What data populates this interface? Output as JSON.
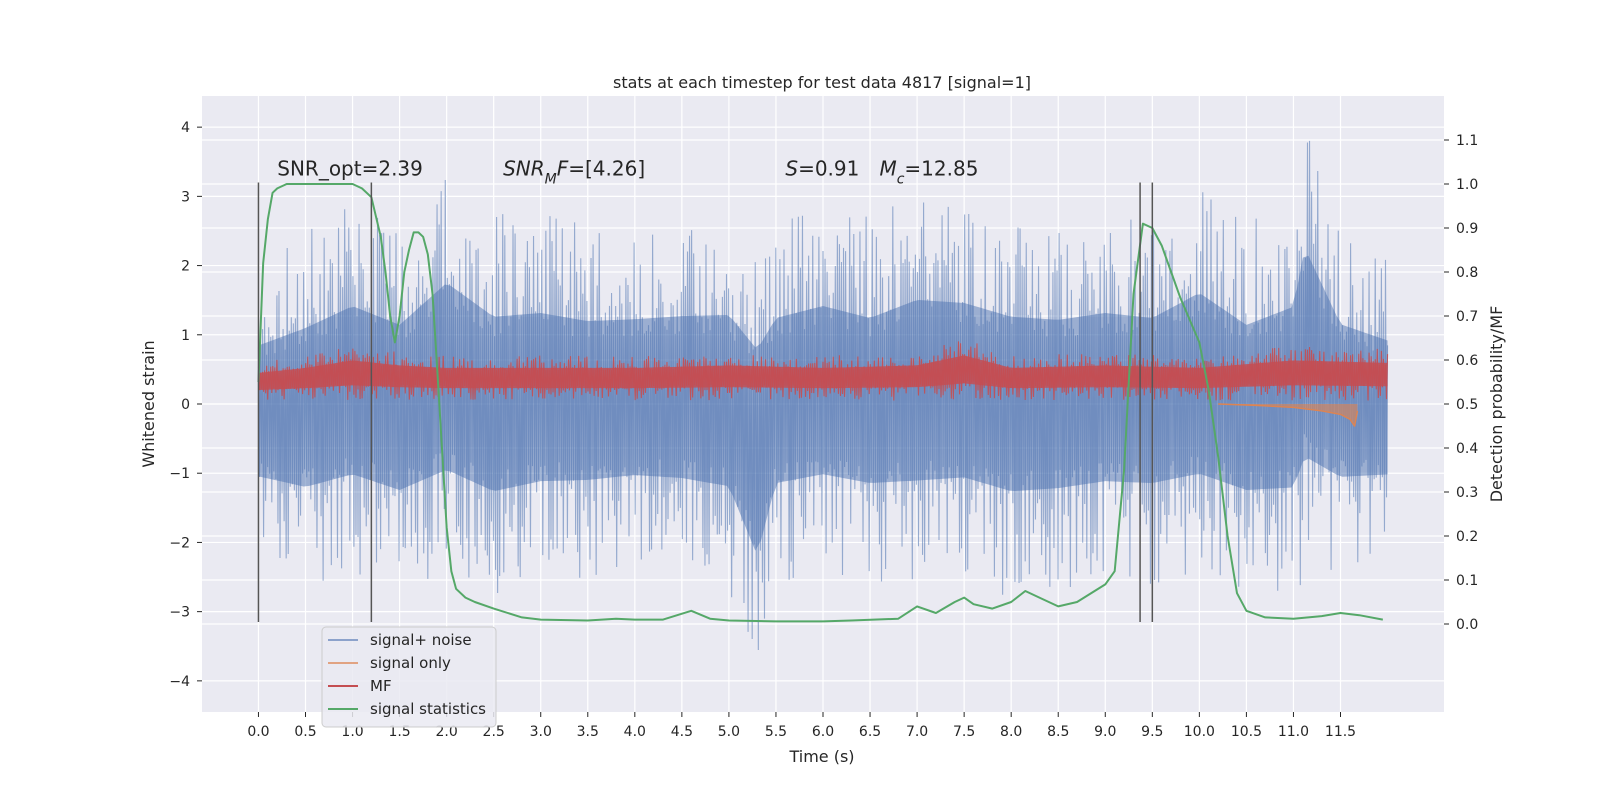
{
  "chart_data": {
    "type": "line",
    "title": "stats at each timestep for test data 4817 [signal=1]",
    "xlabel": "Time (s)",
    "ylabel": "Whitened strain",
    "ylabel_right": "Detection probability/MF",
    "xlim": [
      -0.6,
      12.6
    ],
    "ylim_left": [
      -4.45,
      4.45
    ],
    "ylim_right": [
      -0.2,
      1.2
    ],
    "x_ticks": [
      0.0,
      0.5,
      1.0,
      1.5,
      2.0,
      2.5,
      3.0,
      3.5,
      4.0,
      4.5,
      5.0,
      5.5,
      6.0,
      6.5,
      7.0,
      7.5,
      8.0,
      8.5,
      9.0,
      9.5,
      10.0,
      10.5,
      11.0,
      11.5
    ],
    "x_tick_labels": [
      "0.0",
      "0.5",
      "1.0",
      "1.5",
      "2.0",
      "2.5",
      "3.0",
      "3.5",
      "4.0",
      "4.5",
      "5.0",
      "5.5",
      "6.0",
      "6.5",
      "7.0",
      "7.5",
      "8.0",
      "8.5",
      "9.0",
      "9.5",
      "10.0",
      "10.5",
      "11.0",
      "11.5"
    ],
    "y_left_ticks": [
      -4,
      -3,
      -2,
      -1,
      0,
      1,
      2,
      3,
      4
    ],
    "y_left_tick_labels": [
      "−4",
      "−3",
      "−2",
      "−1",
      "0",
      "1",
      "2",
      "3",
      "4"
    ],
    "y_right_ticks": [
      0.0,
      0.1,
      0.2,
      0.3,
      0.4,
      0.5,
      0.6,
      0.7,
      0.8,
      0.9,
      1.0,
      1.1
    ],
    "y_right_tick_labels": [
      "0.0",
      "0.1",
      "0.2",
      "0.3",
      "0.4",
      "0.5",
      "0.6",
      "0.7",
      "0.8",
      "0.9",
      "1.0",
      "1.1"
    ],
    "grid": true,
    "legend_position": "lower-left",
    "series": [
      {
        "name": "signal+ noise",
        "axis": "left",
        "color": "#4c72b0",
        "style": "noise",
        "x_range": [
          0.0,
          12.0
        ],
        "envelope": [
          [
            0.0,
            -2.2,
            2.0
          ],
          [
            0.5,
            -2.6,
            2.5
          ],
          [
            1.0,
            -2.5,
            2.9
          ],
          [
            1.5,
            -2.7,
            2.6
          ],
          [
            2.0,
            -2.6,
            3.4
          ],
          [
            2.5,
            -2.8,
            2.8
          ],
          [
            3.0,
            -2.6,
            2.8
          ],
          [
            3.5,
            -2.5,
            2.6
          ],
          [
            4.0,
            -2.4,
            2.6
          ],
          [
            4.5,
            -2.5,
            2.7
          ],
          [
            5.0,
            -2.7,
            2.8
          ],
          [
            5.3,
            -4.0,
            2.6
          ],
          [
            5.5,
            -2.6,
            2.7
          ],
          [
            6.0,
            -2.5,
            2.9
          ],
          [
            6.5,
            -2.6,
            2.7
          ],
          [
            7.0,
            -2.7,
            3.1
          ],
          [
            7.5,
            -2.6,
            3.0
          ],
          [
            8.0,
            -2.8,
            2.8
          ],
          [
            8.5,
            -2.7,
            2.7
          ],
          [
            9.0,
            -2.6,
            2.8
          ],
          [
            9.5,
            -2.6,
            2.7
          ],
          [
            10.0,
            -2.6,
            3.2
          ],
          [
            10.5,
            -2.7,
            2.6
          ],
          [
            11.0,
            -2.8,
            3.0
          ],
          [
            11.12,
            -2.6,
            4.1
          ],
          [
            11.5,
            -2.4,
            2.5
          ],
          [
            12.0,
            -2.2,
            2.1
          ]
        ]
      },
      {
        "name": "signal only",
        "axis": "left",
        "color": "#dd8452",
        "style": "line",
        "x": [
          10.2,
          10.6,
          11.0,
          11.3,
          11.5,
          11.6,
          11.65,
          11.68
        ],
        "y": [
          0.0,
          -0.02,
          -0.05,
          -0.1,
          -0.15,
          -0.22,
          -0.32,
          -0.1
        ]
      },
      {
        "name": "MF",
        "axis": "left",
        "color": "#c44e52",
        "style": "noise",
        "x_range": [
          0.0,
          12.0
        ],
        "envelope": [
          [
            0.0,
            0.05,
            0.6
          ],
          [
            0.5,
            0.05,
            0.7
          ],
          [
            1.0,
            0.05,
            0.85
          ],
          [
            1.5,
            0.05,
            0.75
          ],
          [
            2.0,
            0.05,
            0.7
          ],
          [
            3.0,
            0.05,
            0.7
          ],
          [
            4.0,
            0.05,
            0.7
          ],
          [
            5.0,
            0.05,
            0.75
          ],
          [
            6.0,
            0.05,
            0.7
          ],
          [
            7.0,
            0.05,
            0.75
          ],
          [
            7.5,
            0.05,
            0.95
          ],
          [
            8.0,
            0.05,
            0.7
          ],
          [
            9.0,
            0.05,
            0.75
          ],
          [
            10.0,
            0.05,
            0.7
          ],
          [
            11.0,
            0.05,
            0.85
          ],
          [
            12.0,
            0.05,
            0.8
          ]
        ]
      },
      {
        "name": "signal statistics",
        "axis": "right",
        "color": "#55a868",
        "style": "line",
        "x": [
          0.0,
          0.05,
          0.1,
          0.15,
          0.2,
          0.3,
          0.5,
          0.8,
          1.0,
          1.1,
          1.2,
          1.3,
          1.35,
          1.4,
          1.45,
          1.5,
          1.55,
          1.6,
          1.65,
          1.7,
          1.75,
          1.8,
          1.85,
          1.9,
          1.95,
          2.0,
          2.05,
          2.1,
          2.2,
          2.3,
          2.5,
          2.8,
          3.0,
          3.5,
          3.8,
          4.0,
          4.3,
          4.6,
          4.8,
          5.0,
          5.5,
          6.0,
          6.3,
          6.8,
          7.0,
          7.2,
          7.4,
          7.5,
          7.6,
          7.8,
          8.0,
          8.15,
          8.3,
          8.5,
          8.7,
          9.0,
          9.1,
          9.2,
          9.3,
          9.4,
          9.5,
          9.6,
          9.7,
          9.8,
          10.0,
          10.1,
          10.2,
          10.3,
          10.4,
          10.5,
          10.7,
          11.0,
          11.3,
          11.5,
          11.7,
          11.95
        ],
        "y": [
          0.55,
          0.82,
          0.92,
          0.98,
          0.99,
          1.0,
          1.0,
          1.0,
          1.0,
          0.99,
          0.97,
          0.88,
          0.8,
          0.7,
          0.64,
          0.7,
          0.8,
          0.85,
          0.89,
          0.89,
          0.88,
          0.84,
          0.75,
          0.58,
          0.4,
          0.22,
          0.12,
          0.08,
          0.06,
          0.05,
          0.035,
          0.015,
          0.01,
          0.008,
          0.012,
          0.01,
          0.01,
          0.03,
          0.012,
          0.008,
          0.006,
          0.006,
          0.008,
          0.012,
          0.04,
          0.025,
          0.05,
          0.06,
          0.045,
          0.035,
          0.05,
          0.075,
          0.06,
          0.04,
          0.05,
          0.09,
          0.12,
          0.35,
          0.75,
          0.91,
          0.9,
          0.86,
          0.8,
          0.74,
          0.64,
          0.53,
          0.38,
          0.2,
          0.07,
          0.03,
          0.015,
          0.012,
          0.018,
          0.025,
          0.02,
          0.01
        ]
      }
    ],
    "vlines": [
      0.0,
      1.2,
      9.37,
      9.5
    ],
    "vlines_yrange": [
      -3.15,
      3.2
    ],
    "annotations": [
      {
        "text": "SNR_opt=2.39",
        "x": 0.2,
        "y": 3.3
      },
      {
        "text_parts": [
          {
            "t": "SNR",
            "i": true
          },
          {
            "t": "M",
            "i": true,
            "sub": true
          },
          {
            "t": "F",
            "i": true
          },
          {
            "t": "=[4.26]",
            "i": false
          }
        ],
        "x": 2.6,
        "y": 3.3
      },
      {
        "text_parts": [
          {
            "t": "S",
            "i": true
          },
          {
            "t": "=0.91",
            "i": false
          }
        ],
        "x": 5.6,
        "y": 3.3
      },
      {
        "text_parts": [
          {
            "t": "M",
            "i": true
          },
          {
            "t": "c",
            "i": true,
            "sub": true
          },
          {
            "t": "=12.85",
            "i": false
          }
        ],
        "x": 6.6,
        "y": 3.3
      }
    ],
    "colors": {
      "plot_background": "#eaeaf2",
      "grid": "#ffffff",
      "vline": "#555555"
    }
  }
}
